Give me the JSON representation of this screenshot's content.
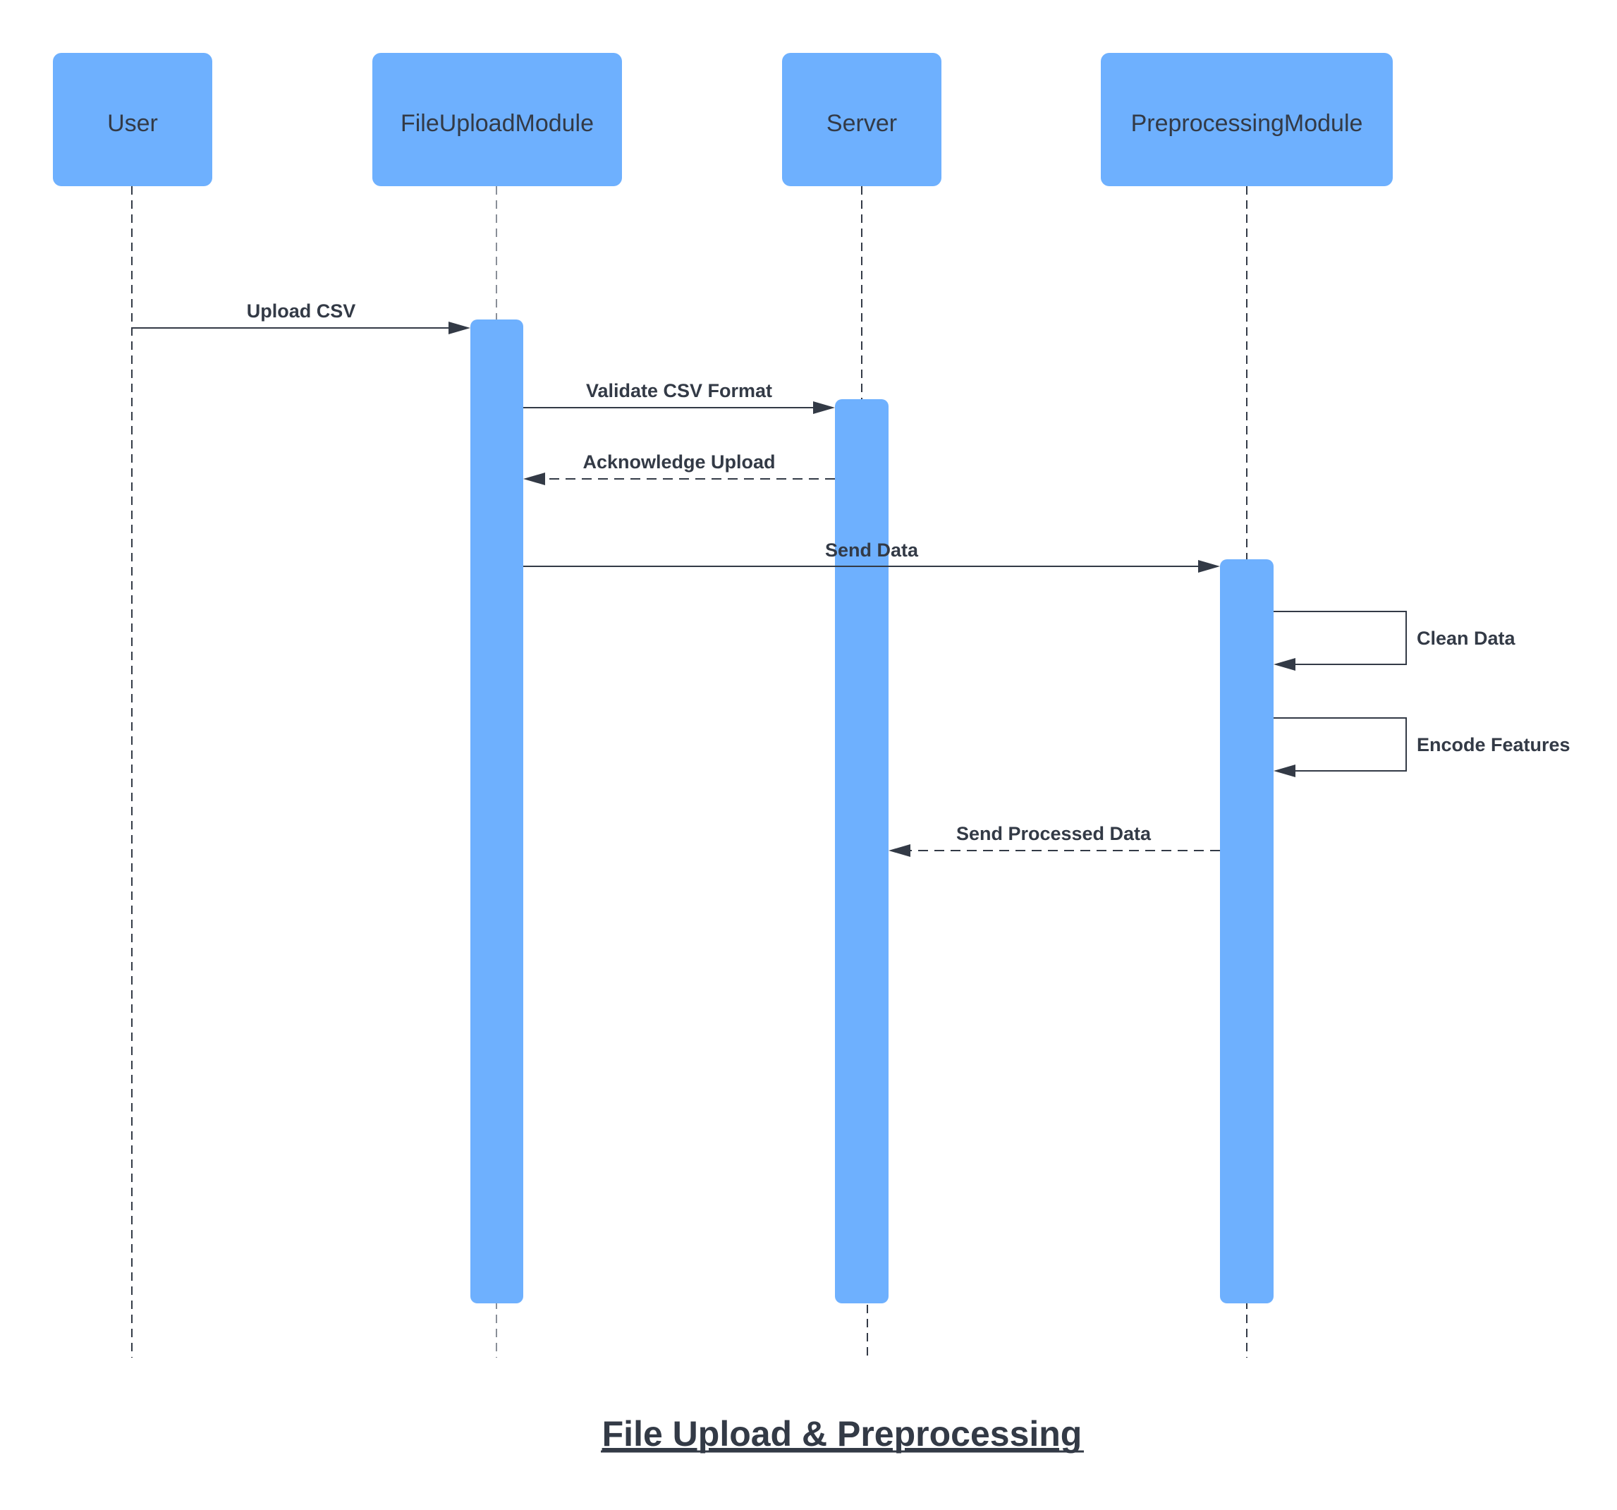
{
  "title": "File Upload & Preprocessing",
  "colors": {
    "actor_fill": "#6eb0fe",
    "line": "#333a46"
  },
  "actors": [
    {
      "id": "user",
      "label": "User"
    },
    {
      "id": "fileupload",
      "label": "FileUploadModule"
    },
    {
      "id": "server",
      "label": "Server"
    },
    {
      "id": "preproc",
      "label": "PreprocessingModule"
    }
  ],
  "messages": [
    {
      "id": "upload-csv",
      "from": "user",
      "to": "fileupload",
      "label": "Upload CSV",
      "style": "solid"
    },
    {
      "id": "validate-csv-format",
      "from": "fileupload",
      "to": "server",
      "label": "Validate CSV Format",
      "style": "solid"
    },
    {
      "id": "acknowledge-upload",
      "from": "server",
      "to": "fileupload",
      "label": "Acknowledge Upload",
      "style": "dashed"
    },
    {
      "id": "send-data",
      "from": "fileupload",
      "to": "preproc",
      "label": "Send Data",
      "style": "solid"
    },
    {
      "id": "clean-data",
      "from": "preproc",
      "to": "preproc",
      "label": "Clean Data",
      "style": "self"
    },
    {
      "id": "encode-features",
      "from": "preproc",
      "to": "preproc",
      "label": "Encode Features",
      "style": "self"
    },
    {
      "id": "send-processed-data",
      "from": "preproc",
      "to": "server",
      "label": "Send Processed Data",
      "style": "dashed"
    }
  ]
}
